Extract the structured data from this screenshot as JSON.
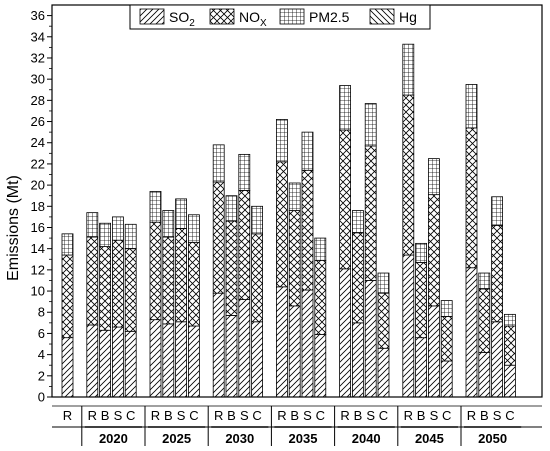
{
  "chart_data": {
    "type": "bar",
    "stacked": true,
    "ylabel": "Emissions (Mt)",
    "ylim": [
      0,
      37
    ],
    "yticks": [
      0,
      2,
      4,
      6,
      8,
      10,
      12,
      14,
      16,
      18,
      20,
      22,
      24,
      26,
      28,
      30,
      32,
      34,
      36
    ],
    "legend": [
      {
        "key": "so2",
        "base": "SO",
        "sub": "2",
        "pattern": "diag-up"
      },
      {
        "key": "nox",
        "base": "NO",
        "sub": "X",
        "pattern": "crosshatch"
      },
      {
        "key": "pm25",
        "base": "PM2.5",
        "sub": "",
        "pattern": "grid"
      },
      {
        "key": "hg",
        "base": "Hg",
        "sub": "",
        "pattern": "diag-down"
      }
    ],
    "legend_position": "top-center",
    "series_order": [
      "so2",
      "nox",
      "pm25",
      "hg"
    ],
    "groups": [
      {
        "label": "",
        "bars": [
          {
            "label": "R",
            "so2": 5.6,
            "nox": 7.8,
            "pm25": 2.0,
            "hg": 0.0
          }
        ]
      },
      {
        "label": "2020",
        "bars": [
          {
            "label": "R",
            "so2": 6.8,
            "nox": 8.3,
            "pm25": 2.3,
            "hg": 0.0
          },
          {
            "label": "B",
            "so2": 6.3,
            "nox": 7.9,
            "pm25": 2.2,
            "hg": 0.0
          },
          {
            "label": "S",
            "so2": 6.6,
            "nox": 8.2,
            "pm25": 2.2,
            "hg": 0.0
          },
          {
            "label": "C",
            "so2": 6.2,
            "nox": 7.8,
            "pm25": 2.3,
            "hg": 0.0
          }
        ]
      },
      {
        "label": "2025",
        "bars": [
          {
            "label": "R",
            "so2": 7.3,
            "nox": 9.2,
            "pm25": 2.9,
            "hg": 0.0
          },
          {
            "label": "B",
            "so2": 6.9,
            "nox": 8.2,
            "pm25": 2.5,
            "hg": 0.0
          },
          {
            "label": "S",
            "so2": 7.1,
            "nox": 8.8,
            "pm25": 2.8,
            "hg": 0.0
          },
          {
            "label": "C",
            "so2": 6.7,
            "nox": 7.9,
            "pm25": 2.6,
            "hg": 0.0
          }
        ]
      },
      {
        "label": "2030",
        "bars": [
          {
            "label": "R",
            "so2": 9.8,
            "nox": 10.5,
            "pm25": 3.5,
            "hg": 0.0
          },
          {
            "label": "B",
            "so2": 7.7,
            "nox": 8.9,
            "pm25": 2.4,
            "hg": 0.0
          },
          {
            "label": "S",
            "so2": 9.2,
            "nox": 10.3,
            "pm25": 3.4,
            "hg": 0.0
          },
          {
            "label": "C",
            "so2": 7.1,
            "nox": 8.3,
            "pm25": 2.6,
            "hg": 0.0
          }
        ]
      },
      {
        "label": "2035",
        "bars": [
          {
            "label": "R",
            "so2": 10.4,
            "nox": 11.8,
            "pm25": 4.0,
            "hg": 0.0
          },
          {
            "label": "B",
            "so2": 8.6,
            "nox": 9.0,
            "pm25": 2.6,
            "hg": 0.0
          },
          {
            "label": "S",
            "so2": 10.1,
            "nox": 11.3,
            "pm25": 3.6,
            "hg": 0.0
          },
          {
            "label": "C",
            "so2": 5.9,
            "nox": 7.0,
            "pm25": 2.1,
            "hg": 0.0
          }
        ]
      },
      {
        "label": "2040",
        "bars": [
          {
            "label": "R",
            "so2": 12.1,
            "nox": 13.1,
            "pm25": 4.2,
            "hg": 0.0
          },
          {
            "label": "B",
            "so2": 7.0,
            "nox": 8.5,
            "pm25": 2.1,
            "hg": 0.0
          },
          {
            "label": "S",
            "so2": 11.0,
            "nox": 12.7,
            "pm25": 4.0,
            "hg": 0.0
          },
          {
            "label": "C",
            "so2": 4.6,
            "nox": 5.2,
            "pm25": 1.9,
            "hg": 0.0
          }
        ]
      },
      {
        "label": "2045",
        "bars": [
          {
            "label": "R",
            "so2": 13.4,
            "nox": 15.1,
            "pm25": 4.8,
            "hg": 0.0
          },
          {
            "label": "B",
            "so2": 5.6,
            "nox": 7.1,
            "pm25": 1.8,
            "hg": 0.0
          },
          {
            "label": "S",
            "so2": 8.6,
            "nox": 10.5,
            "pm25": 3.4,
            "hg": 0.0
          },
          {
            "label": "C",
            "so2": 3.4,
            "nox": 4.2,
            "pm25": 1.5,
            "hg": 0.0
          }
        ]
      },
      {
        "label": "2050",
        "bars": [
          {
            "label": "R",
            "so2": 12.2,
            "nox": 13.2,
            "pm25": 4.1,
            "hg": 0.0
          },
          {
            "label": "B",
            "so2": 4.2,
            "nox": 6.0,
            "pm25": 1.5,
            "hg": 0.0
          },
          {
            "label": "S",
            "so2": 7.1,
            "nox": 9.1,
            "pm25": 2.7,
            "hg": 0.0
          },
          {
            "label": "C",
            "so2": 3.0,
            "nox": 3.7,
            "pm25": 1.1,
            "hg": 0.0
          }
        ]
      }
    ]
  }
}
